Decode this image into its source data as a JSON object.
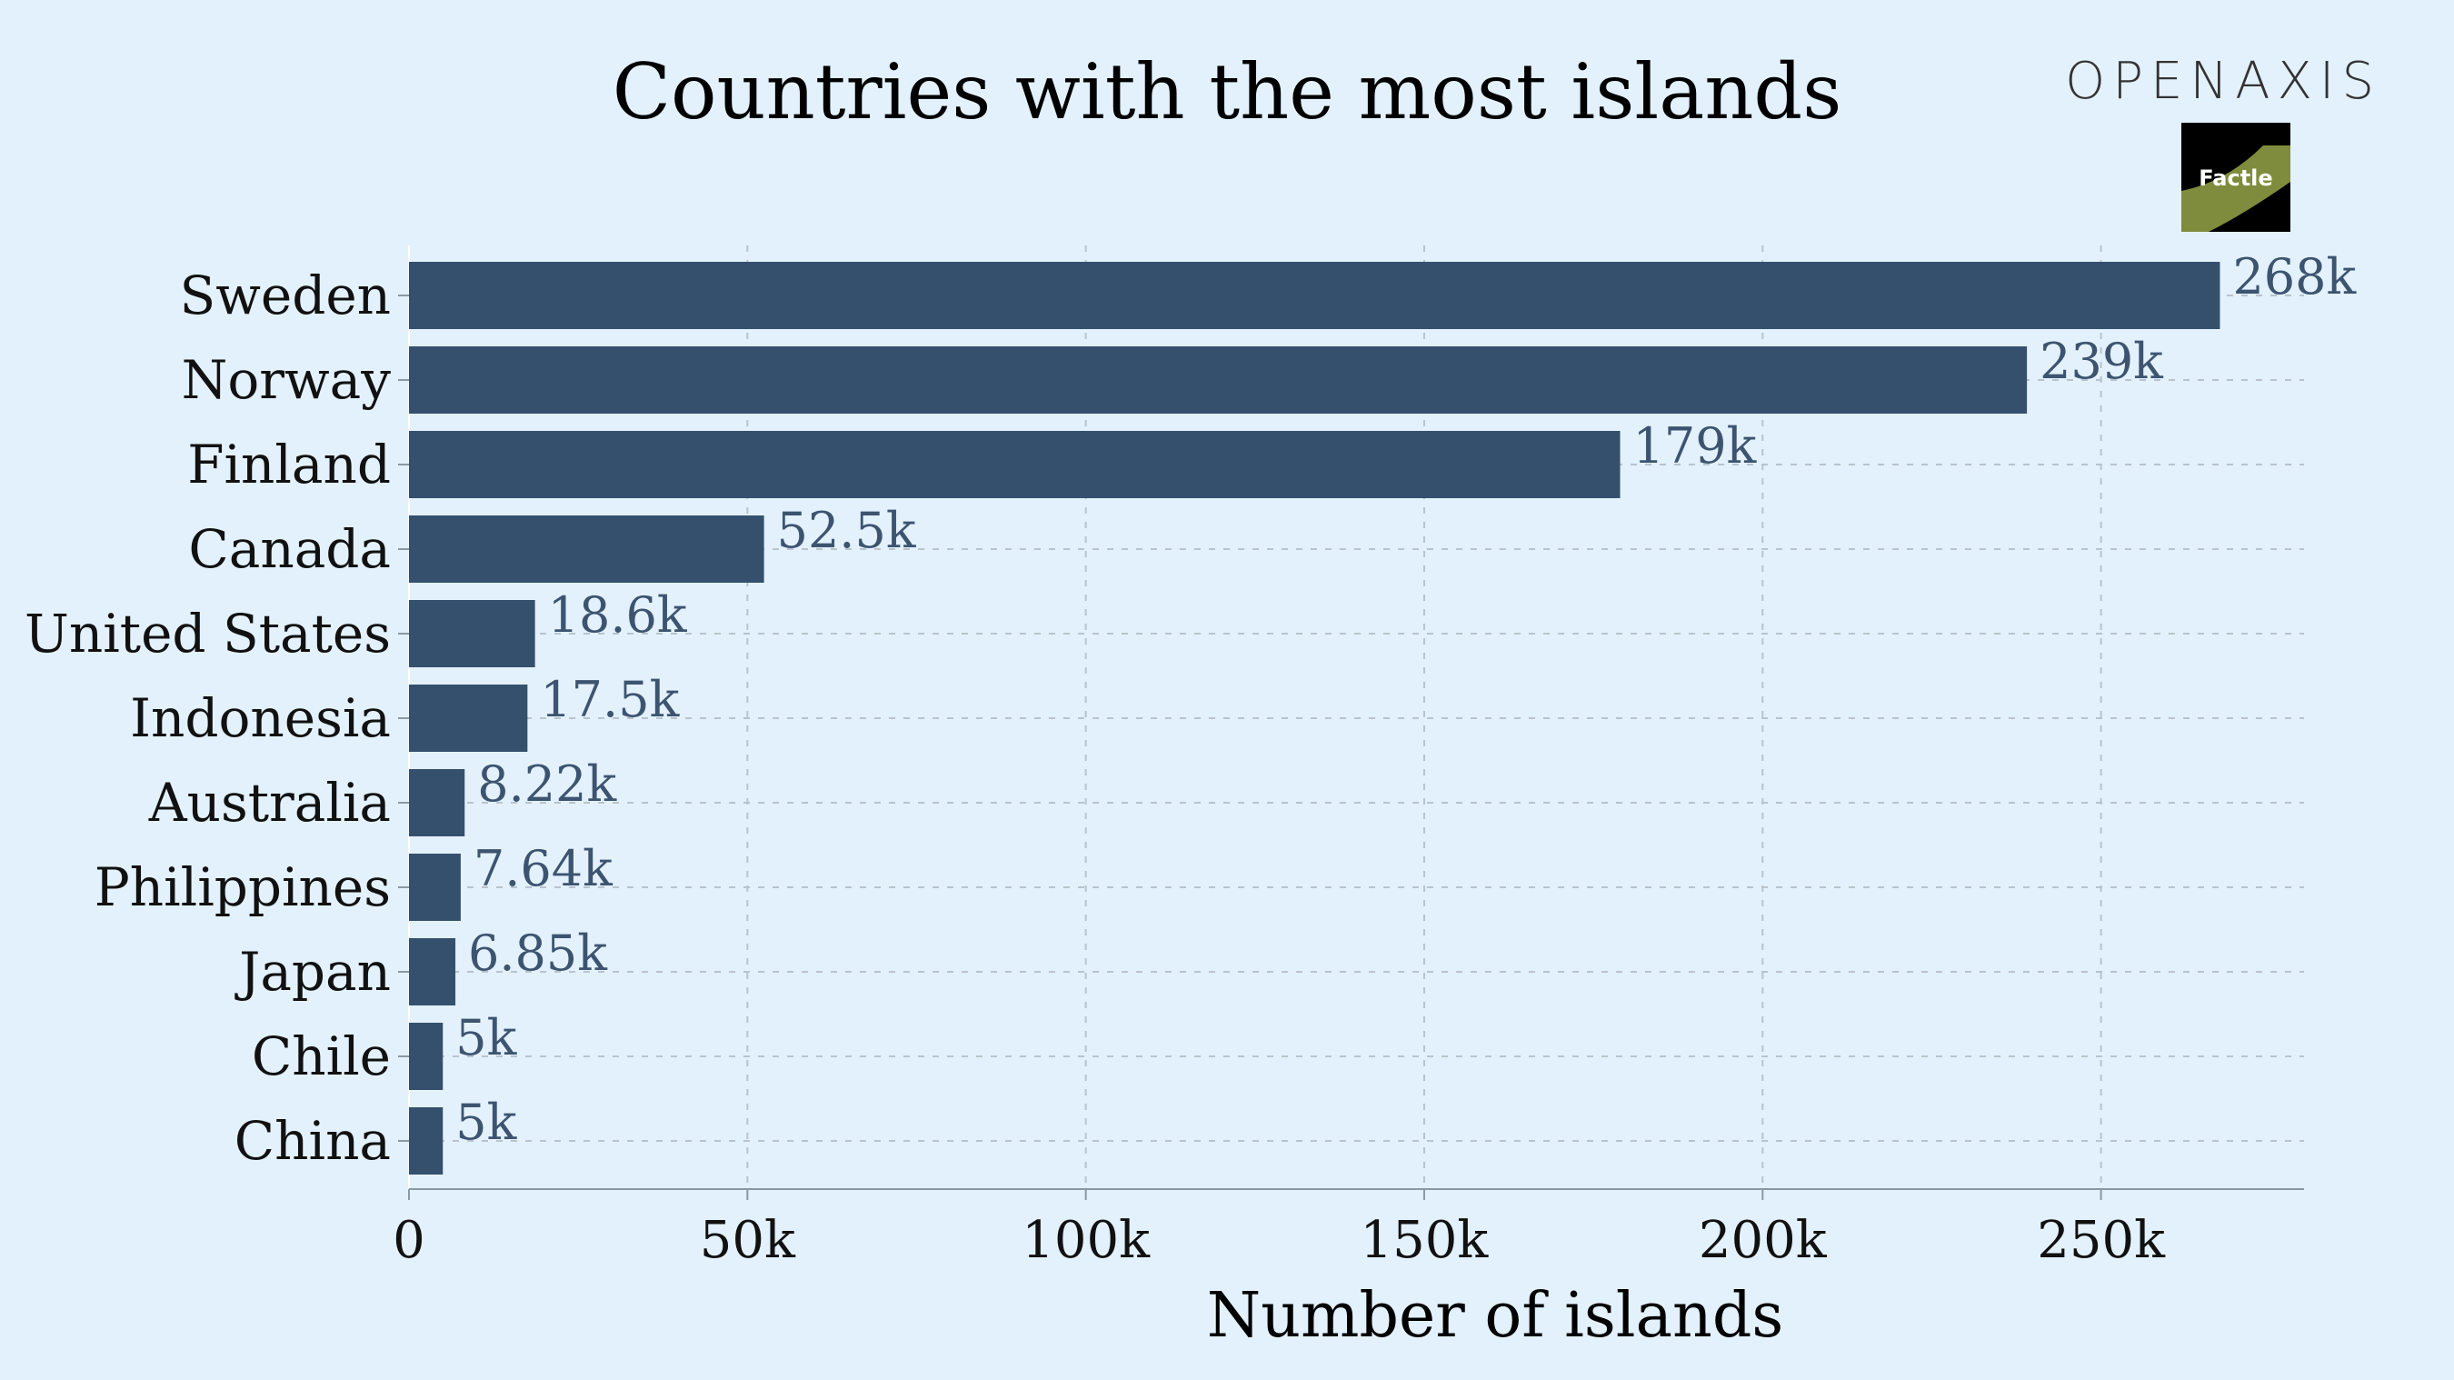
{
  "brand": {
    "name": "OPENAXIS",
    "badge": "Factle"
  },
  "colors": {
    "background": "#e3f1fc",
    "bar": "#34506d",
    "value_label": "#3d5470",
    "grid": "#b8c3cc"
  },
  "chart_data": {
    "type": "bar",
    "orientation": "horizontal",
    "title": "Countries with the most islands",
    "xlabel": "Number of islands",
    "ylabel": "",
    "xlim": [
      0,
      280000
    ],
    "grid": true,
    "categories": [
      "Sweden",
      "Norway",
      "Finland",
      "Canada",
      "United States",
      "Indonesia",
      "Australia",
      "Philippines",
      "Japan",
      "Chile",
      "China"
    ],
    "values": [
      267570,
      239057,
      178947,
      52455,
      18617,
      17504,
      8222,
      7641,
      6852,
      5000,
      5000
    ],
    "value_labels": [
      "268k",
      "239k",
      "179k",
      "52.5k",
      "18.6k",
      "17.5k",
      "8.22k",
      "7.64k",
      "6.85k",
      "5k",
      "5k"
    ],
    "xticks": [
      0,
      50000,
      100000,
      150000,
      200000,
      250000
    ],
    "xtick_labels": [
      "0",
      "50k",
      "100k",
      "150k",
      "200k",
      "250k"
    ]
  }
}
